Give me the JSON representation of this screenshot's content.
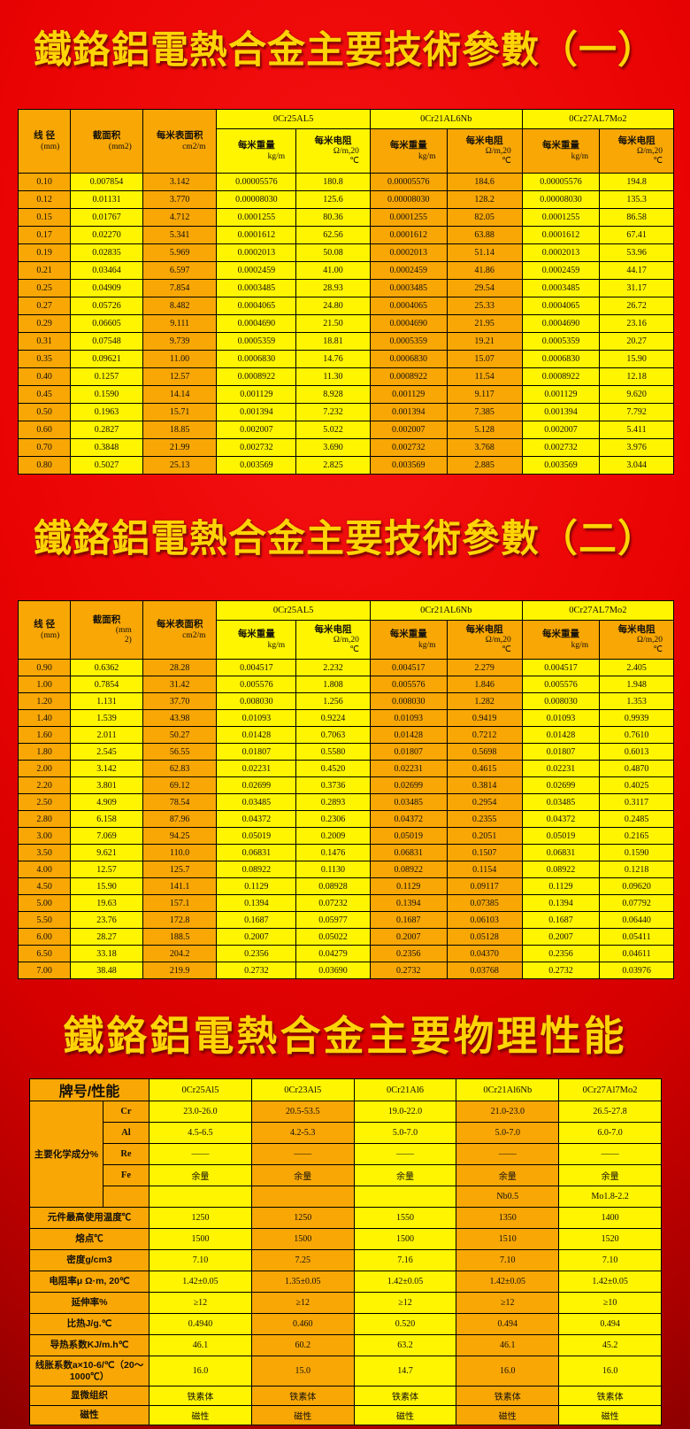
{
  "colors": {
    "background_red": "#ea0303",
    "cell_orange": "#f8a705",
    "cell_yellow": "#fff500",
    "title_gold": "#ffd405",
    "border_black": "#000000"
  },
  "titles": {
    "t1": "鐵鉻鋁電熱合金主要技術參數（一）",
    "t2": "鐵鉻鋁電熱合金主要技術參數（二）",
    "t3": "鐵鉻鋁電熱合金主要物理性能"
  },
  "param_tables": [
    {
      "name": "params-table-1",
      "fixed_columns": [
        {
          "label": "线 径",
          "units": [
            "(mm)"
          ]
        },
        {
          "label": "截面积",
          "units": [
            "(mm2)"
          ]
        },
        {
          "label": "每米表面积",
          "units": [
            "cm2/m"
          ]
        }
      ],
      "alloys": [
        "0Cr25AL5",
        "0Cr21AL6Nb",
        "0Cr27AL7Mo2"
      ],
      "sub_columns": [
        {
          "label": "每米重量",
          "units": [
            "kg/m"
          ]
        },
        {
          "label": "每米电阻",
          "units": [
            "Ω/m,20",
            "℃"
          ]
        }
      ],
      "rows": [
        [
          "0.10",
          "0.007854",
          "3.142",
          "0.00005576",
          "180.8",
          "0.00005576",
          "184.6",
          "0.00005576",
          "194.8"
        ],
        [
          "0.12",
          "0.01131",
          "3.770",
          "0.00008030",
          "125.6",
          "0.00008030",
          "128.2",
          "0.00008030",
          "135.3"
        ],
        [
          "0.15",
          "0.01767",
          "4.712",
          "0.0001255",
          "80.36",
          "0.0001255",
          "82.05",
          "0.0001255",
          "86.58"
        ],
        [
          "0.17",
          "0.02270",
          "5.341",
          "0.0001612",
          "62.56",
          "0.0001612",
          "63.88",
          "0.0001612",
          "67.41"
        ],
        [
          "0.19",
          "0.02835",
          "5.969",
          "0.0002013",
          "50.08",
          "0.0002013",
          "51.14",
          "0.0002013",
          "53.96"
        ],
        [
          "0.21",
          "0.03464",
          "6.597",
          "0.0002459",
          "41.00",
          "0.0002459",
          "41.86",
          "0.0002459",
          "44.17"
        ],
        [
          "0.25",
          "0.04909",
          "7.854",
          "0.0003485",
          "28.93",
          "0.0003485",
          "29.54",
          "0.0003485",
          "31.17"
        ],
        [
          "0.27",
          "0.05726",
          "8.482",
          "0.0004065",
          "24.80",
          "0.0004065",
          "25.33",
          "0.0004065",
          "26.72"
        ],
        [
          "0.29",
          "0.06605",
          "9.111",
          "0.0004690",
          "21.50",
          "0.0004690",
          "21.95",
          "0.0004690",
          "23.16"
        ],
        [
          "0.31",
          "0.07548",
          "9.739",
          "0.0005359",
          "18.81",
          "0.0005359",
          "19.21",
          "0.0005359",
          "20.27"
        ],
        [
          "0.35",
          "0.09621",
          "11.00",
          "0.0006830",
          "14.76",
          "0.0006830",
          "15.07",
          "0.0006830",
          "15.90"
        ],
        [
          "0.40",
          "0.1257",
          "12.57",
          "0.0008922",
          "11.30",
          "0.0008922",
          "11.54",
          "0.0008922",
          "12.18"
        ],
        [
          "0.45",
          "0.1590",
          "14.14",
          "0.001129",
          "8.928",
          "0.001129",
          "9.117",
          "0.001129",
          "9.620"
        ],
        [
          "0.50",
          "0.1963",
          "15.71",
          "0.001394",
          "7.232",
          "0.001394",
          "7.385",
          "0.001394",
          "7.792"
        ],
        [
          "0.60",
          "0.2827",
          "18.85",
          "0.002007",
          "5.022",
          "0.002007",
          "5.128",
          "0.002007",
          "5.411"
        ],
        [
          "0.70",
          "0.3848",
          "21.99",
          "0.002732",
          "3.690",
          "0.002732",
          "3.768",
          "0.002732",
          "3.976"
        ],
        [
          "0.80",
          "0.5027",
          "25.13",
          "0.003569",
          "2.825",
          "0.003569",
          "2.885",
          "0.003569",
          "3.044"
        ]
      ]
    },
    {
      "name": "params-table-2",
      "fixed_columns": [
        {
          "label": "线 径",
          "units": [
            "(mm)"
          ]
        },
        {
          "label": "截面积",
          "units": [
            "(mm",
            "2)"
          ]
        },
        {
          "label": "每米表面积",
          "units": [
            "cm2/m"
          ]
        }
      ],
      "alloys": [
        "0Cr25AL5",
        "0Cr21AL6Nb",
        "0Cr27AL7Mo2"
      ],
      "sub_columns": [
        {
          "label": "每米重量",
          "units": [
            "kg/m"
          ]
        },
        {
          "label": "每米电阻",
          "units": [
            "Ω/m,20",
            "℃"
          ]
        }
      ],
      "rows": [
        [
          "0.90",
          "0.6362",
          "28.28",
          "0.004517",
          "2.232",
          "0.004517",
          "2.279",
          "0.004517",
          "2.405"
        ],
        [
          "1.00",
          "0.7854",
          "31.42",
          "0.005576",
          "1.808",
          "0.005576",
          "1.846",
          "0.005576",
          "1.948"
        ],
        [
          "1.20",
          "1.131",
          "37.70",
          "0.008030",
          "1.256",
          "0.008030",
          "1.282",
          "0.008030",
          "1.353"
        ],
        [
          "1.40",
          "1.539",
          "43.98",
          "0.01093",
          "0.9224",
          "0.01093",
          "0.9419",
          "0.01093",
          "0.9939"
        ],
        [
          "1.60",
          "2.011",
          "50.27",
          "0.01428",
          "0.7063",
          "0.01428",
          "0.7212",
          "0.01428",
          "0.7610"
        ],
        [
          "1.80",
          "2.545",
          "56.55",
          "0.01807",
          "0.5580",
          "0.01807",
          "0.5698",
          "0.01807",
          "0.6013"
        ],
        [
          "2.00",
          "3.142",
          "62.83",
          "0.02231",
          "0.4520",
          "0.02231",
          "0.4615",
          "0.02231",
          "0.4870"
        ],
        [
          "2.20",
          "3.801",
          "69.12",
          "0.02699",
          "0.3736",
          "0.02699",
          "0.3814",
          "0.02699",
          "0.4025"
        ],
        [
          "2.50",
          "4.909",
          "78.54",
          "0.03485",
          "0.2893",
          "0.03485",
          "0.2954",
          "0.03485",
          "0.3117"
        ],
        [
          "2.80",
          "6.158",
          "87.96",
          "0.04372",
          "0.2306",
          "0.04372",
          "0.2355",
          "0.04372",
          "0.2485"
        ],
        [
          "3.00",
          "7.069",
          "94.25",
          "0.05019",
          "0.2009",
          "0.05019",
          "0.2051",
          "0.05019",
          "0.2165"
        ],
        [
          "3.50",
          "9.621",
          "110.0",
          "0.06831",
          "0.1476",
          "0.06831",
          "0.1507",
          "0.06831",
          "0.1590"
        ],
        [
          "4.00",
          "12.57",
          "125.7",
          "0.08922",
          "0.1130",
          "0.08922",
          "0.1154",
          "0.08922",
          "0.1218"
        ],
        [
          "4.50",
          "15.90",
          "141.1",
          "0.1129",
          "0.08928",
          "0.1129",
          "0.09117",
          "0.1129",
          "0.09620"
        ],
        [
          "5.00",
          "19.63",
          "157.1",
          "0.1394",
          "0.07232",
          "0.1394",
          "0.07385",
          "0.1394",
          "0.07792"
        ],
        [
          "5.50",
          "23.76",
          "172.8",
          "0.1687",
          "0.05977",
          "0.1687",
          "0.06103",
          "0.1687",
          "0.06440"
        ],
        [
          "6.00",
          "28.27",
          "188.5",
          "0.2007",
          "0.05022",
          "0.2007",
          "0.05128",
          "0.2007",
          "0.05411"
        ],
        [
          "6.50",
          "33.18",
          "204.2",
          "0.2356",
          "0.04279",
          "0.2356",
          "0.04370",
          "0.2356",
          "0.04611"
        ],
        [
          "7.00",
          "38.48",
          "219.9",
          "0.2732",
          "0.03690",
          "0.2732",
          "0.03768",
          "0.2732",
          "0.03976"
        ]
      ]
    }
  ],
  "physical_table": {
    "name": "physical-properties-table",
    "header_label": "牌号/性能",
    "alloys": [
      "0Cr25Al5",
      "0Cr23Al5",
      "0Cr21Al6",
      "0Cr21Al6Nb",
      "0Cr27Al7Mo2"
    ],
    "composition_group_label": "主要化学成分%",
    "composition_rows": [
      {
        "element": "Cr",
        "values": [
          "23.0-26.0",
          "20.5-53.5",
          "19.0-22.0",
          "21.0-23.0",
          "26.5-27.8"
        ]
      },
      {
        "element": "Al",
        "values": [
          "4.5-6.5",
          "4.2-5.3",
          "5.0-7.0",
          "5.0-7.0",
          "6.0-7.0"
        ]
      },
      {
        "element": "Re",
        "values": [
          "——",
          "——",
          "——",
          "——",
          "——"
        ]
      },
      {
        "element": "Fe",
        "values": [
          "余量",
          "余量",
          "余量",
          "余量",
          "余量"
        ]
      },
      {
        "element": "",
        "values": [
          "",
          "",
          "",
          "Nb0.5",
          "Mo1.8-2.2"
        ]
      }
    ],
    "property_rows": [
      {
        "label": "元件最高使用温度℃",
        "values": [
          "1250",
          "1250",
          "1550",
          "1350",
          "1400"
        ]
      },
      {
        "label": "熔点℃",
        "values": [
          "1500",
          "1500",
          "1500",
          "1510",
          "1520"
        ]
      },
      {
        "label": "密度g/cm3",
        "values": [
          "7.10",
          "7.25",
          "7.16",
          "7.10",
          "7.10"
        ]
      },
      {
        "label": "电阻率μ Ω·m, 20℃",
        "values": [
          "1.42±0.05",
          "1.35±0.05",
          "1.42±0.05",
          "1.42±0.05",
          "1.42±0.05"
        ]
      },
      {
        "label": "延伸率%",
        "values": [
          "≥12",
          "≥12",
          "≥12",
          "≥12",
          "≥10"
        ]
      },
      {
        "label": "比热J/g.℃",
        "values": [
          "0.4940",
          "0.460",
          "0.520",
          "0.494",
          "0.494"
        ]
      },
      {
        "label": "导热系数KJ/m.h℃",
        "values": [
          "46.1",
          "60.2",
          "63.2",
          "46.1",
          "45.2"
        ]
      },
      {
        "label": "线胀系数a×10-6/℃（20～1000℃）",
        "values": [
          "16.0",
          "15.0",
          "14.7",
          "16.0",
          "16.0"
        ]
      },
      {
        "label": "显微组织",
        "values": [
          "铁素体",
          "铁素体",
          "铁素体",
          "铁素体",
          "铁素体"
        ]
      },
      {
        "label": "磁性",
        "values": [
          "磁性",
          "磁性",
          "磁性",
          "磁性",
          "磁性"
        ]
      }
    ]
  }
}
